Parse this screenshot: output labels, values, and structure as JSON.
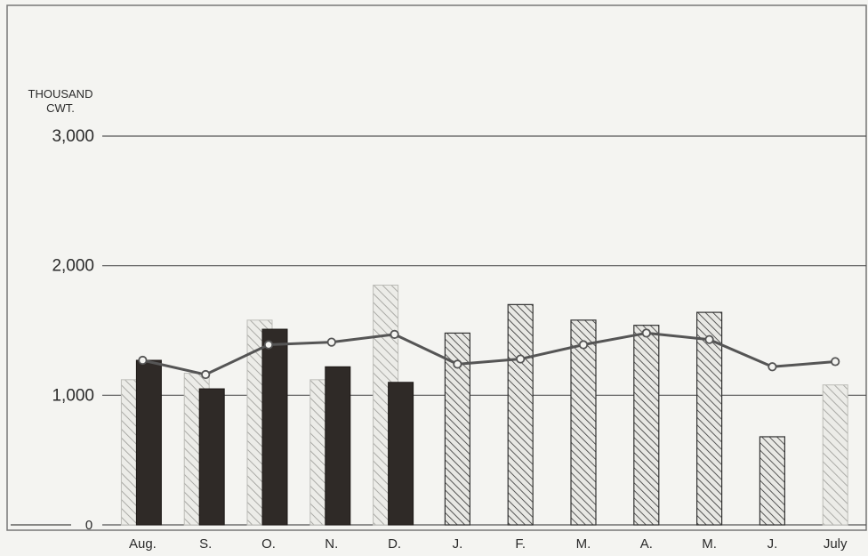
{
  "chart_data": {
    "type": "bar",
    "title": "",
    "xlabel": "",
    "ylabel_line1": "THOUSAND",
    "ylabel_line2": "CWT.",
    "ylim": [
      0,
      3000
    ],
    "yticks": [
      0,
      1000,
      2000,
      3000
    ],
    "ytick_labels": [
      "0",
      "1,000",
      "2,000",
      "3,000"
    ],
    "categories": [
      "Aug.",
      "S.",
      "O.",
      "N.",
      "D.",
      "J.",
      "F.",
      "M.",
      "A.",
      "M.",
      "J.",
      "July"
    ],
    "series": [
      {
        "style": "light-hatched",
        "values": [
          1120,
          1170,
          1580,
          1120,
          1850,
          null,
          null,
          null,
          null,
          null,
          null,
          1080
        ]
      },
      {
        "style": "dark-hatched",
        "values": [
          null,
          null,
          null,
          null,
          null,
          1480,
          1700,
          1580,
          1540,
          1640,
          680,
          null
        ]
      },
      {
        "style": "solid-black",
        "values": [
          1270,
          1050,
          1510,
          1220,
          1100,
          null,
          null,
          null,
          null,
          null,
          null,
          null
        ]
      },
      {
        "style": "line-with-circles",
        "values": [
          1270,
          1160,
          1390,
          1410,
          1470,
          1240,
          1280,
          1390,
          1480,
          1430,
          1220,
          1260
        ]
      }
    ],
    "grid": true,
    "legend": "none"
  }
}
